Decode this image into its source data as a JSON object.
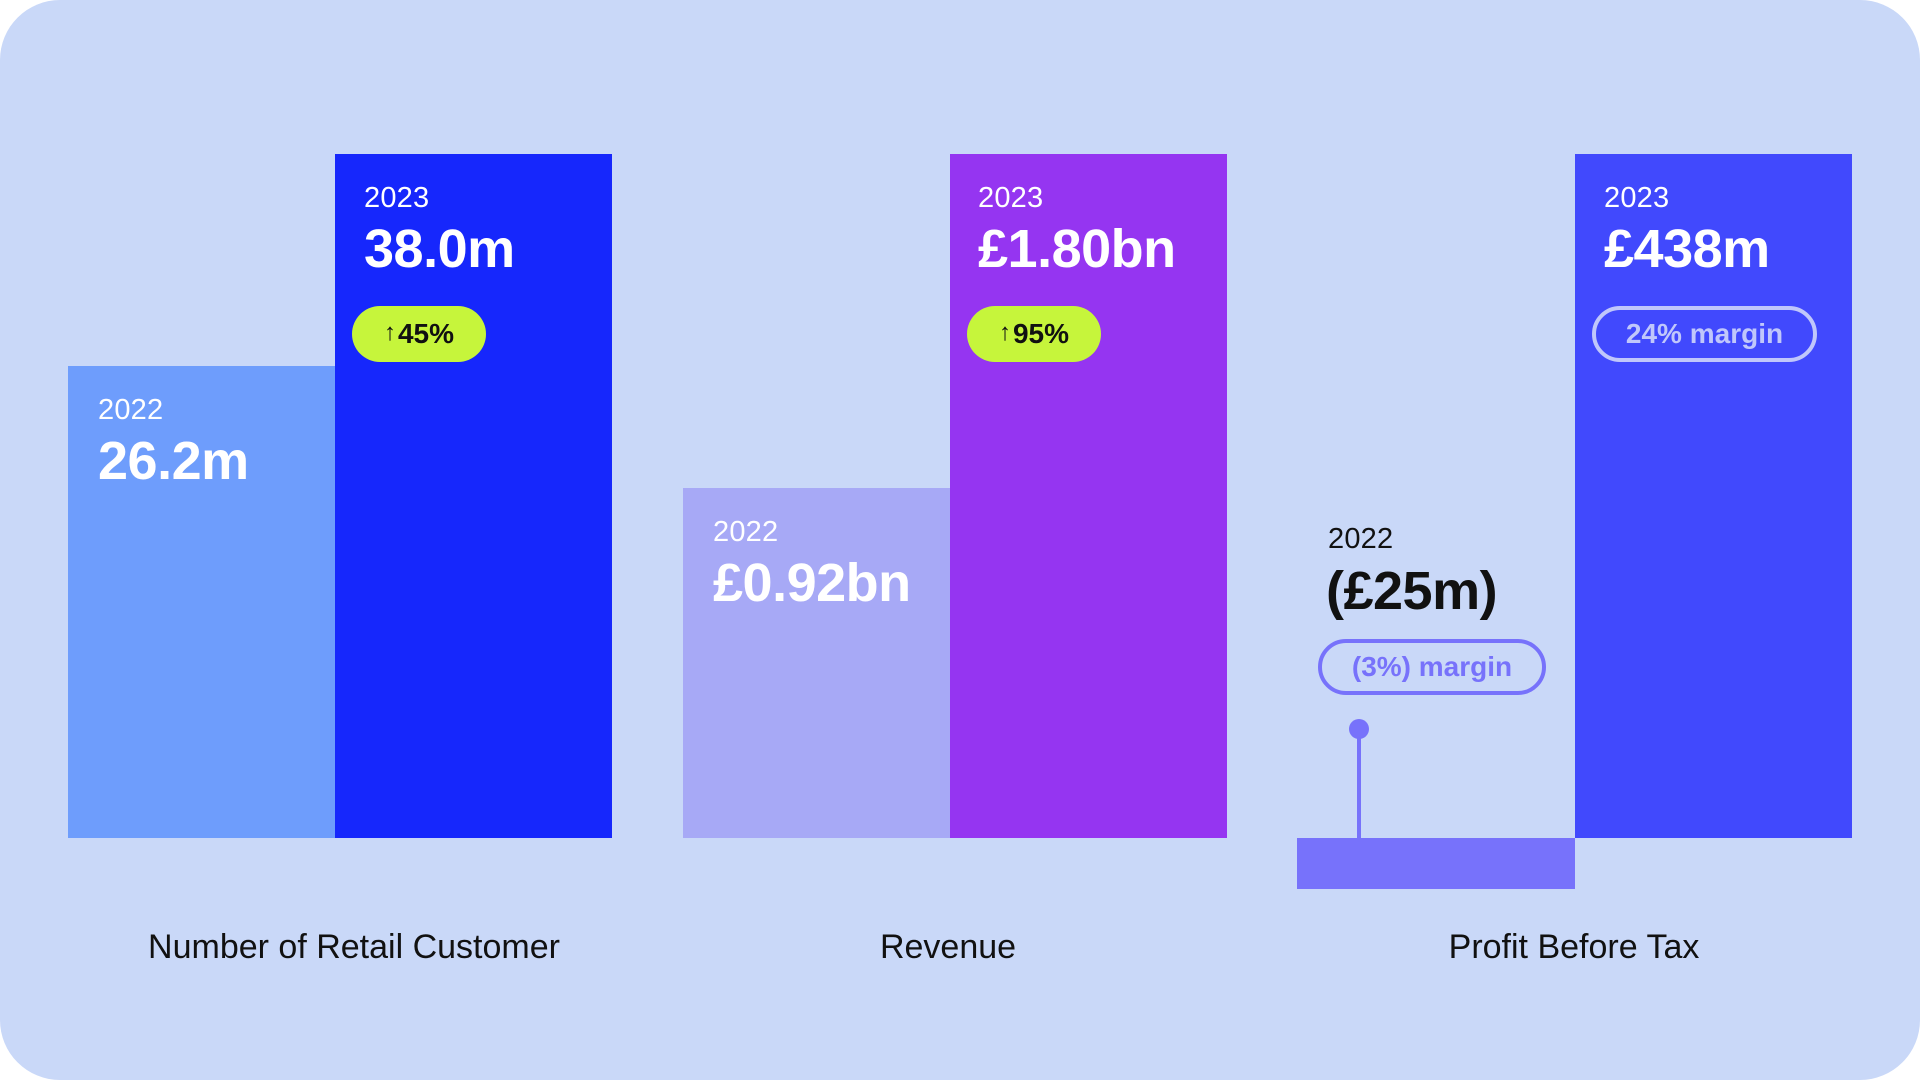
{
  "chart_data": [
    {
      "type": "bar",
      "title": "Number of Retail Customer",
      "categories": [
        "2022",
        "2023"
      ],
      "values": [
        26.2,
        38.0
      ],
      "unit": "m",
      "value_labels": [
        "26.2m",
        "38.0m"
      ],
      "change": "45%",
      "colors": [
        "#6e9dfc",
        "#1627fc"
      ]
    },
    {
      "type": "bar",
      "title": "Revenue",
      "categories": [
        "2022",
        "2023"
      ],
      "values": [
        0.92,
        1.8
      ],
      "unit": "£bn",
      "value_labels": [
        "£0.92bn",
        "£1.80bn"
      ],
      "change": "95%",
      "colors": [
        "#a7a9f6",
        "#9535f1"
      ]
    },
    {
      "type": "bar",
      "title": "Profit Before Tax",
      "categories": [
        "2022",
        "2023"
      ],
      "values": [
        -25,
        438
      ],
      "unit": "£m",
      "value_labels": [
        "(£25m)",
        "£438m"
      ],
      "margins": [
        "(3%) margin",
        "24% margin"
      ],
      "colors": [
        "#7772fb",
        "#4149fd"
      ]
    }
  ],
  "theme": {
    "background": "#c9d8f8",
    "change_pill": "#c6f53b"
  }
}
